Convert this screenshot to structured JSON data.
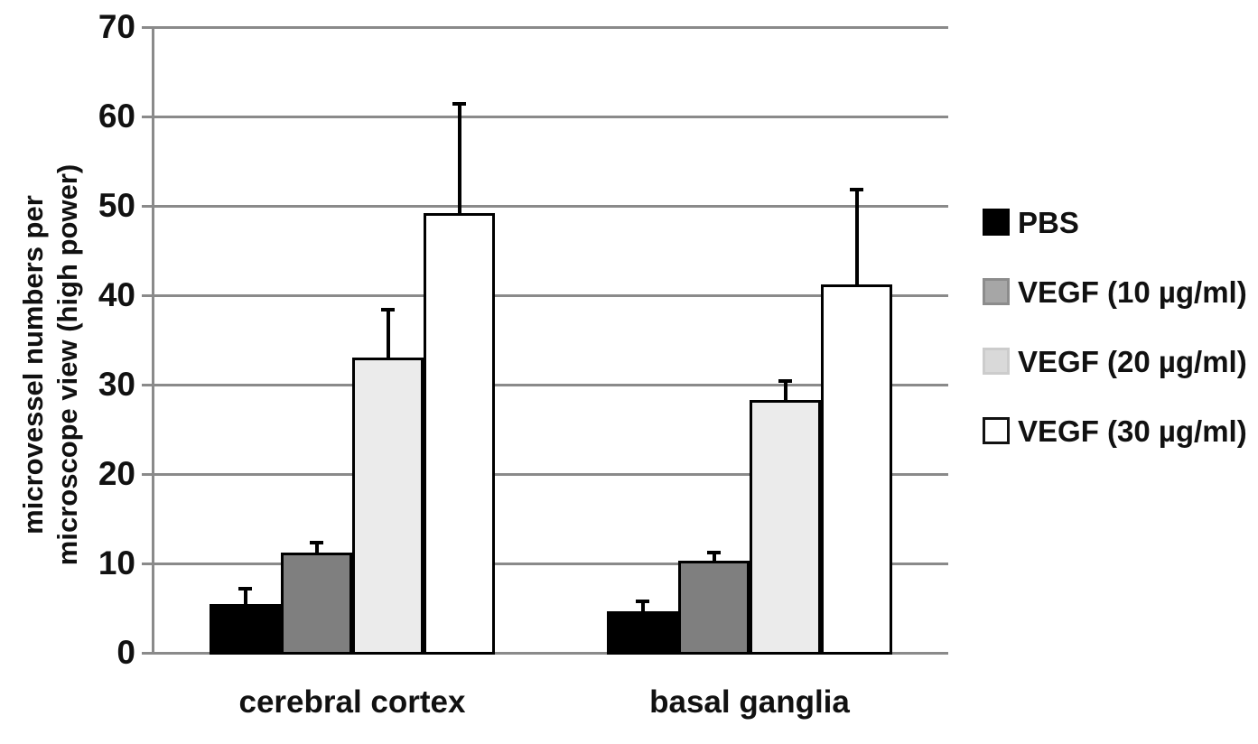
{
  "figure": {
    "background": "#ffffff",
    "text_color": "#111111",
    "gridline_color": "#8a8a8a",
    "error_bar_color": "#000000"
  },
  "chart_data": {
    "type": "bar",
    "title": "",
    "categories": [
      "cerebral cortex",
      "basal ganglia"
    ],
    "series": [
      {
        "name": "PBS",
        "values": [
          5.5,
          4.6
        ],
        "errors": [
          1.8,
          1.3
        ],
        "bar_fill": "#000000",
        "bar_border": "#000000",
        "legend_fill": "#000000",
        "legend_border": "#000000"
      },
      {
        "name": "VEGF (10 µg/ml)",
        "values": [
          11.2,
          10.3
        ],
        "errors": [
          1.2,
          1.0
        ],
        "bar_fill": "#7f7f7f",
        "bar_border": "#000000",
        "legend_fill": "#a6a6a6",
        "legend_border": "#8c8c8c"
      },
      {
        "name": "VEGF (20 µg/ml)",
        "values": [
          33.0,
          28.3
        ],
        "errors": [
          5.5,
          2.2
        ],
        "bar_fill": "#ebebeb",
        "bar_border": "#000000",
        "legend_fill": "#d9d9d9",
        "legend_border": "#cccccc"
      },
      {
        "name": "VEGF (30 µg/ml)",
        "values": [
          49.2,
          41.2
        ],
        "errors": [
          12.3,
          10.7
        ],
        "bar_fill": "#ffffff",
        "bar_border": "#000000",
        "legend_fill": "#ffffff",
        "legend_border": "#111111"
      }
    ],
    "xlabel": "",
    "ylabel_line1": "microvessel numbers per",
    "ylabel_line2": "microscope view (high power)",
    "ylim": [
      0,
      70
    ],
    "yticks": [
      0,
      10,
      20,
      30,
      40,
      50,
      60,
      70
    ],
    "grid": true,
    "legend_position": "right",
    "error_bars": "upper-only"
  }
}
